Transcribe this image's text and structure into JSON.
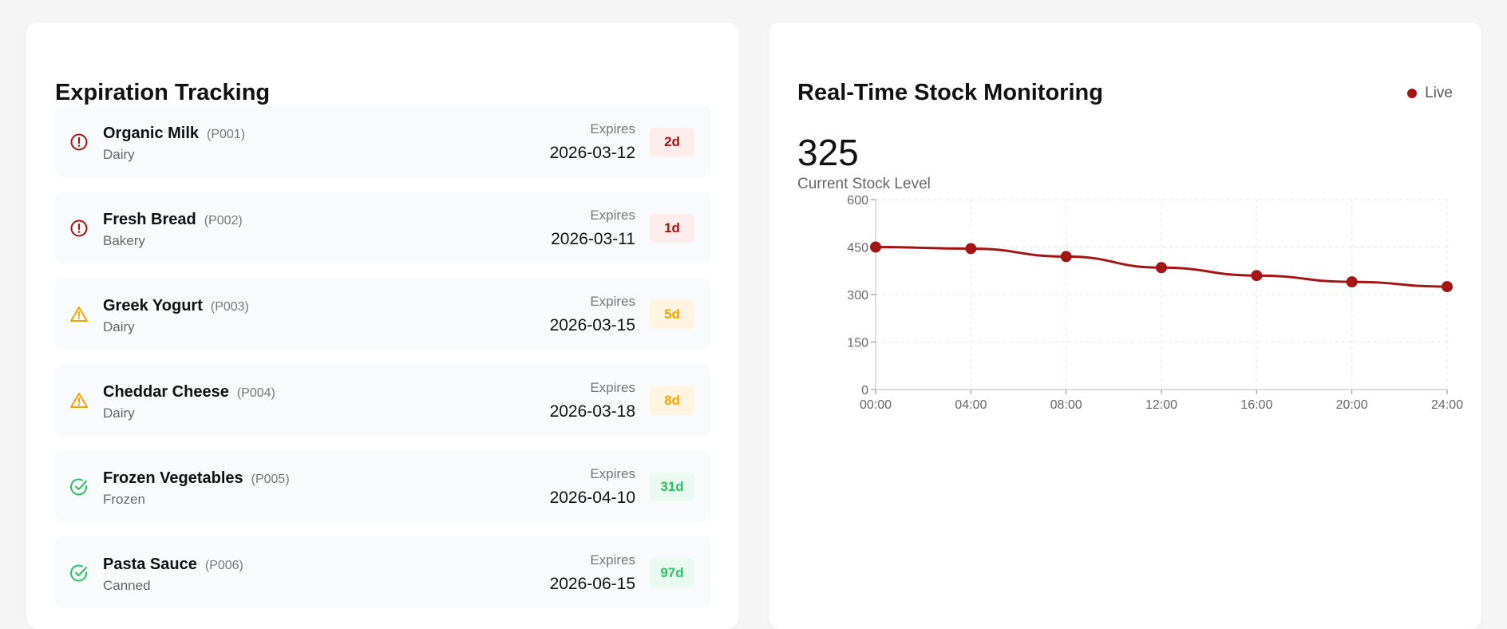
{
  "expiration": {
    "title": "Expiration Tracking",
    "expires_label": "Expires",
    "items": [
      {
        "name": "Organic Milk",
        "code": "(P001)",
        "category": "Dairy",
        "date": "2026-03-12",
        "days": "2d",
        "status": "critical"
      },
      {
        "name": "Fresh Bread",
        "code": "(P002)",
        "category": "Bakery",
        "date": "2026-03-11",
        "days": "1d",
        "status": "critical"
      },
      {
        "name": "Greek Yogurt",
        "code": "(P003)",
        "category": "Dairy",
        "date": "2026-03-15",
        "days": "5d",
        "status": "warning"
      },
      {
        "name": "Cheddar Cheese",
        "code": "(P004)",
        "category": "Dairy",
        "date": "2026-03-18",
        "days": "8d",
        "status": "warning"
      },
      {
        "name": "Frozen Vegetables",
        "code": "(P005)",
        "category": "Frozen",
        "date": "2026-04-10",
        "days": "31d",
        "status": "ok"
      },
      {
        "name": "Pasta Sauce",
        "code": "(P006)",
        "category": "Canned",
        "date": "2026-06-15",
        "days": "97d",
        "status": "ok"
      }
    ]
  },
  "status_colors": {
    "critical": "#a31515",
    "warning": "#f5a300",
    "ok": "#22c55e"
  },
  "monitor": {
    "title": "Real-Time Stock Monitoring",
    "live_label": "Live",
    "current_stock": "325",
    "current_stock_label": "Current Stock Level"
  },
  "chart_data": {
    "type": "line",
    "categories": [
      "00:00",
      "04:00",
      "08:00",
      "12:00",
      "16:00",
      "20:00",
      "24:00"
    ],
    "values": [
      450,
      445,
      420,
      385,
      360,
      340,
      325
    ],
    "ylim": [
      0,
      600
    ],
    "yticks": [
      "0",
      "150",
      "300",
      "450",
      "600"
    ],
    "grid": true,
    "color": "#a31515"
  }
}
